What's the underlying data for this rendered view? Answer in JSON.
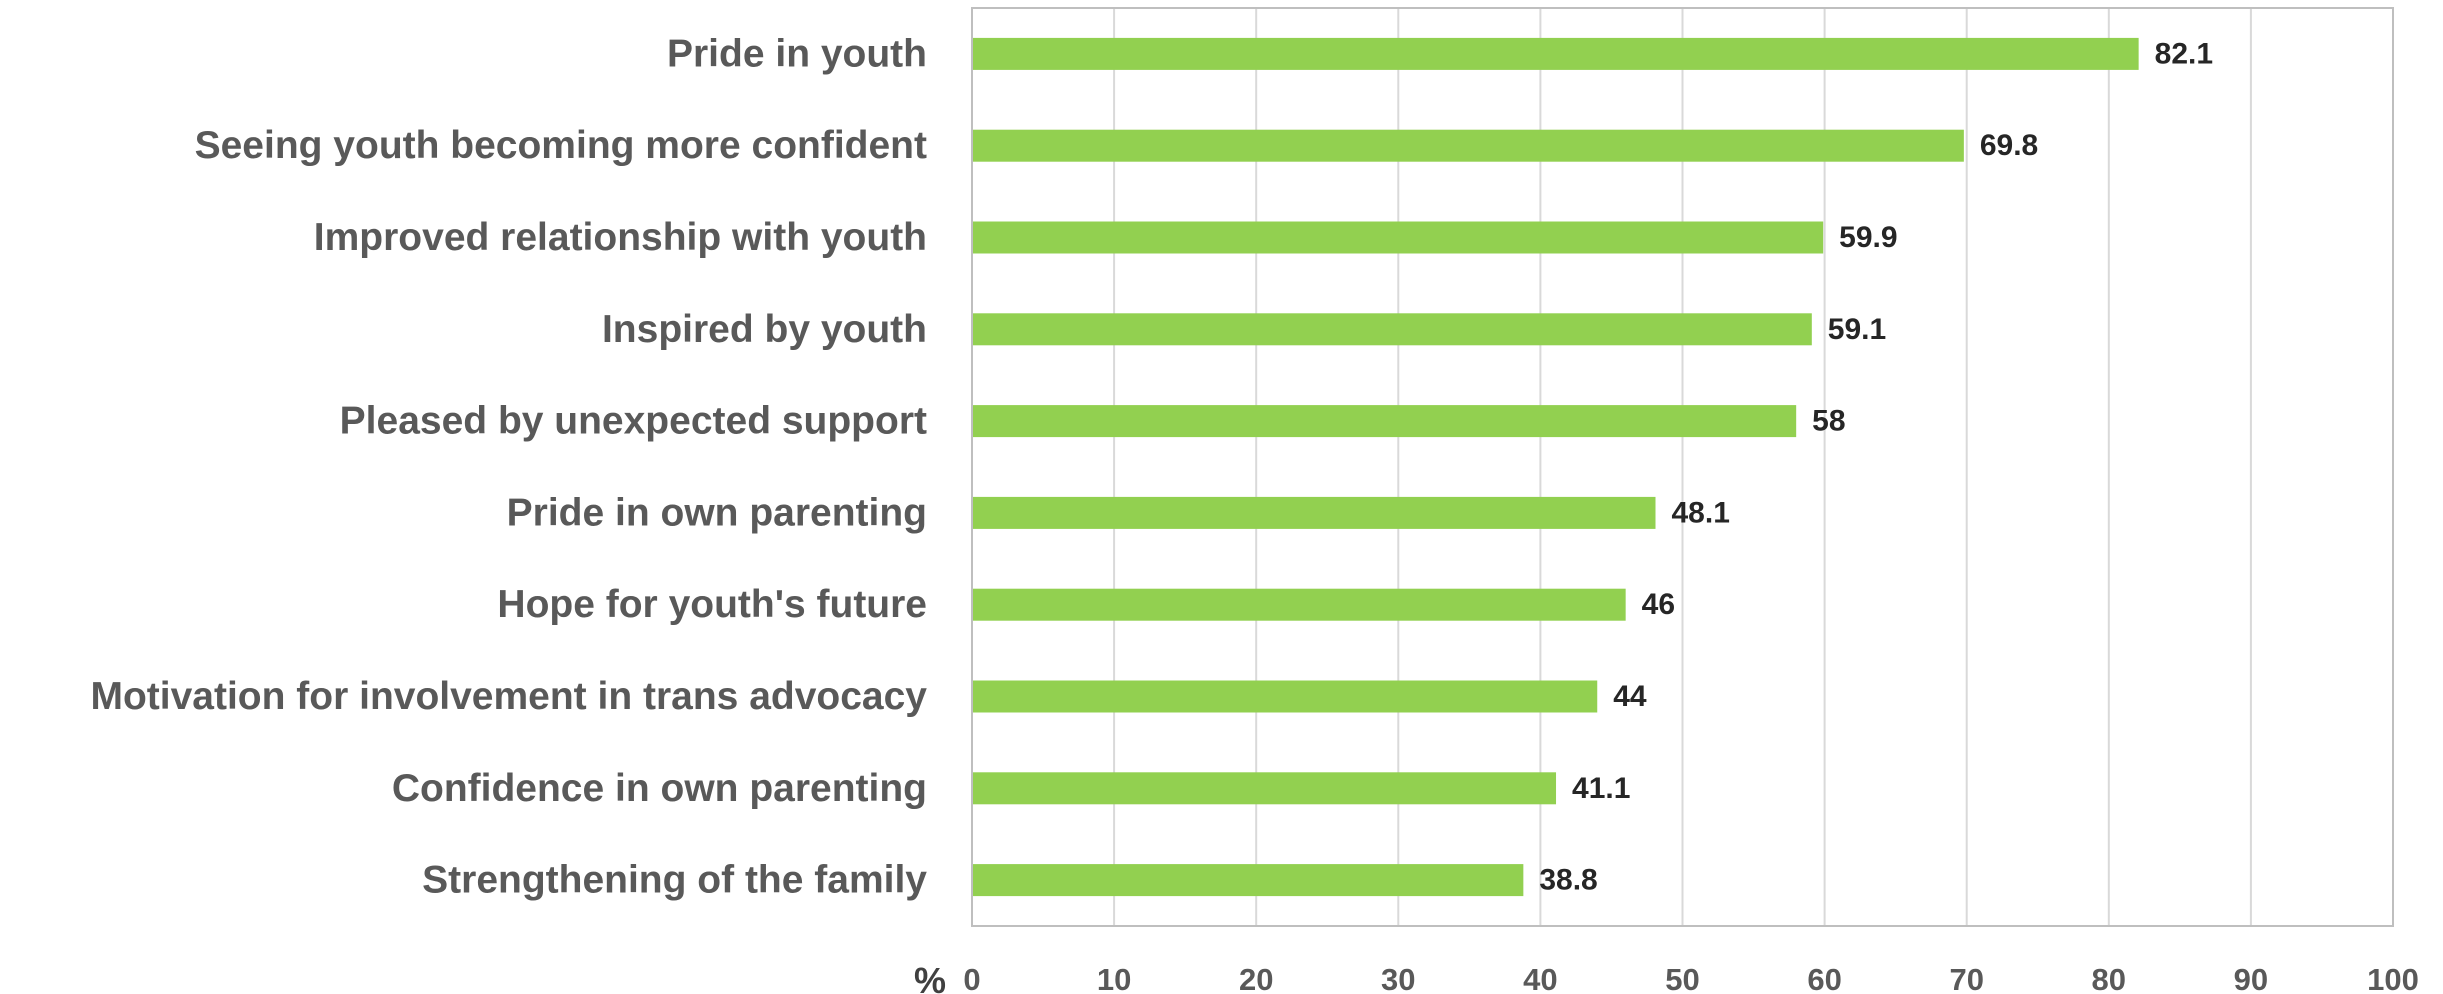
{
  "chart_data": {
    "type": "bar",
    "orientation": "horizontal",
    "categories": [
      "Pride in youth",
      "Seeing youth becoming more confident",
      "Improved relationship with youth",
      "Inspired by youth",
      "Pleased by unexpected support",
      "Pride in own parenting",
      "Hope for youth's future",
      "Motivation for involvement in trans advocacy",
      "Confidence in own parenting",
      "Strengthening of the family"
    ],
    "values": [
      82.1,
      69.8,
      59.9,
      59.1,
      58,
      48.1,
      46,
      44,
      41.1,
      38.8
    ],
    "data_labels": [
      "82.1",
      "69.8",
      "59.9",
      "59.1",
      "58",
      "48.1",
      "46",
      "44",
      "41.1",
      "38.8"
    ],
    "title": "",
    "xlabel": "%",
    "ylabel": "",
    "xlim": [
      0,
      100
    ],
    "x_ticks": [
      "0",
      "10",
      "20",
      "30",
      "40",
      "50",
      "60",
      "70",
      "80",
      "90",
      "100"
    ],
    "grid": "vertical",
    "legend": "none"
  },
  "colors": {
    "bar": "#92d050",
    "grid": "#d9d9d9",
    "frame": "#bfbfbf",
    "category_text": "#595959",
    "value_text": "#262626"
  }
}
